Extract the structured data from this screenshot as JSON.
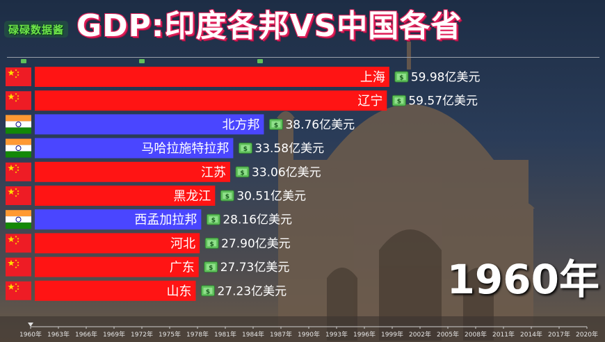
{
  "header": {
    "logo_text": "碌碌数据酱",
    "title": "GDP:印度各邦VS中国各省",
    "year": "1960年"
  },
  "colors": {
    "china_bar": "#ff1414",
    "india_bar": "#4a46ff",
    "title_outline": "#e0205a"
  },
  "icons": {
    "china": "china-flag-icon",
    "india": "india-flag-icon",
    "money": "money-icon"
  },
  "chart_data": {
    "type": "bar",
    "orientation": "horizontal",
    "title": "GDP:印度各邦VS中国各省",
    "unit": "亿美元",
    "year": "1960年",
    "categories": [
      "上海",
      "辽宁",
      "北方邦",
      "马哈拉施特拉邦",
      "江苏",
      "黑龙江",
      "西孟加拉邦",
      "河北",
      "广东",
      "山东"
    ],
    "values": [
      59.98,
      59.57,
      38.76,
      33.58,
      33.06,
      30.51,
      28.16,
      27.9,
      27.73,
      27.23
    ],
    "value_labels": [
      "59.98亿美元",
      "59.57亿美元",
      "38.76亿美元",
      "33.58亿美元",
      "33.06亿美元",
      "30.51亿美元",
      "28.16亿美元",
      "27.90亿美元",
      "27.73亿美元",
      "27.23亿美元"
    ],
    "country": [
      "china",
      "china",
      "india",
      "india",
      "china",
      "china",
      "india",
      "china",
      "china",
      "china"
    ],
    "timeline_ticks": [
      "1960年",
      "1963年",
      "1966年",
      "1969年",
      "1972年",
      "1975年",
      "1978年",
      "1981年",
      "1984年",
      "1987年",
      "1990年",
      "1993年",
      "1996年",
      "1999年",
      "2002年",
      "2005年",
      "2008年",
      "2011年",
      "2014年",
      "2017年",
      "2020年"
    ],
    "timeline_current": "1960年",
    "legend": "none",
    "grid": false
  }
}
